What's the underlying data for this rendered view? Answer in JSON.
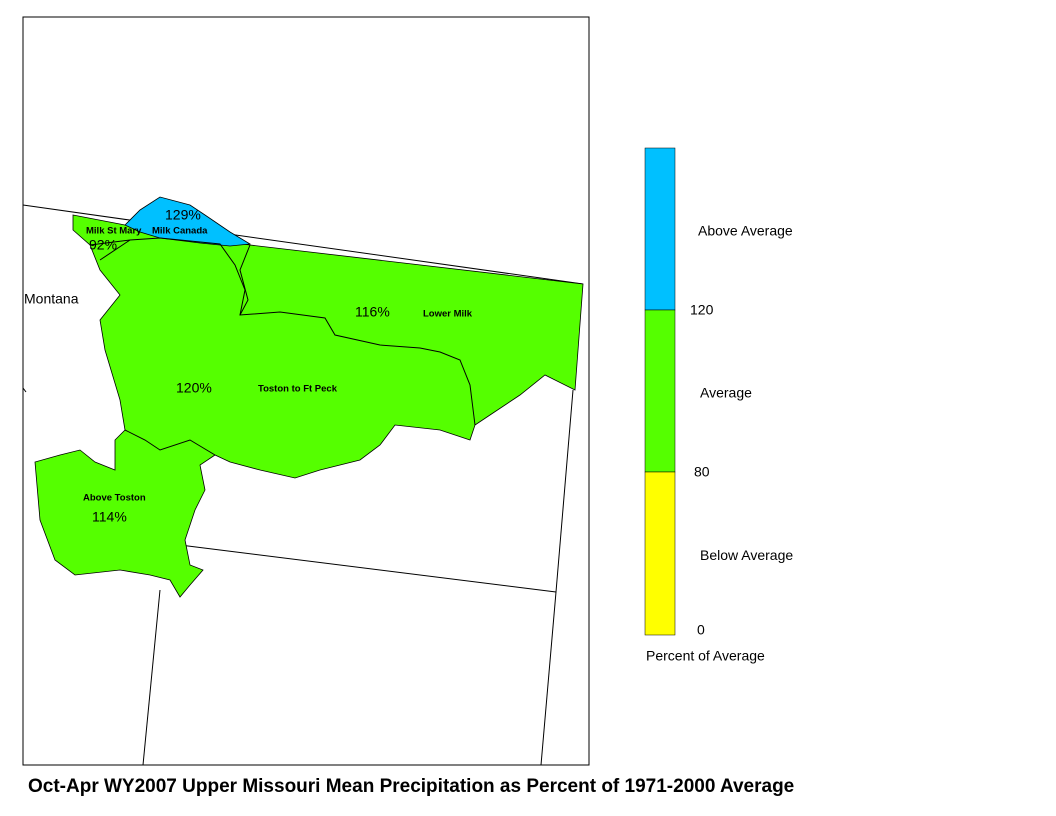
{
  "title": "Oct-Apr WY2007 Upper Missouri Mean Precipitation as Percent of 1971-2000 Average",
  "map": {
    "state_label": "Montana",
    "basins": [
      {
        "name": "Milk St Mary",
        "percent": "92%"
      },
      {
        "name": "Milk Canada",
        "percent": "129%"
      },
      {
        "name": "Lower Milk",
        "percent": "116%"
      },
      {
        "name": "Toston to Ft Peck",
        "percent": "120%"
      },
      {
        "name": "Above Toston",
        "percent": "114%"
      }
    ]
  },
  "legend": {
    "title": "Percent of Average",
    "classes": [
      {
        "label": "Above Average",
        "color": "#00c0ff"
      },
      {
        "label": "Average",
        "color": "#55ff00"
      },
      {
        "label": "Below Average",
        "color": "#ffff00"
      }
    ],
    "breaks": [
      120,
      80,
      0
    ]
  }
}
